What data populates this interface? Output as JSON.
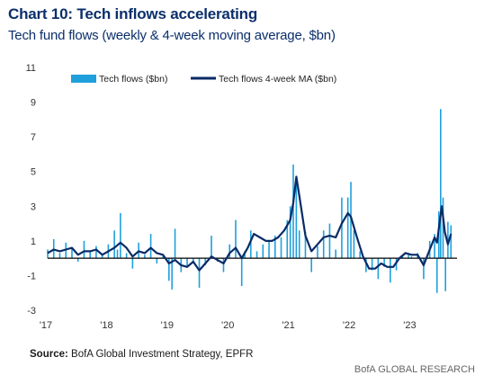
{
  "header": {
    "title": "Chart 10: Tech inflows accelerating",
    "subtitle": "Tech fund flows (weekly & 4-week moving average, $bn)"
  },
  "footer": {
    "source_label": "Source:",
    "source_text": "BofA Global Investment Strategy, EPFR",
    "brand": "BofA GLOBAL RESEARCH"
  },
  "colors": {
    "bars": "#1fa0dc",
    "line": "#0a2a66",
    "zero_line": "#000000"
  },
  "chart_data": {
    "type": "bar",
    "title": "Chart 10: Tech inflows accelerating",
    "subtitle": "Tech fund flows (weekly & 4-week moving average, $bn)",
    "ylim": [
      -3,
      11
    ],
    "y_ticks": [
      "11",
      "9",
      "7",
      "5",
      "3",
      "1",
      "-1",
      "-3"
    ],
    "x_ticks": [
      "'17",
      "'18",
      "'19",
      "'20",
      "'21",
      "'22",
      "'23"
    ],
    "xlim": [
      2017.0,
      2023.75
    ],
    "grid": false,
    "legend": {
      "placement": "top",
      "entries": [
        "Tech flows ($bn)",
        "Tech flows 4-week MA ($bn)"
      ]
    },
    "series": [
      {
        "name": "Tech flows ($bn)",
        "type": "bar",
        "x": [
          2017.0,
          2017.1,
          2017.2,
          2017.3,
          2017.4,
          2017.5,
          2017.6,
          2017.7,
          2017.8,
          2017.9,
          2018.0,
          2018.1,
          2018.15,
          2018.2,
          2018.3,
          2018.4,
          2018.5,
          2018.6,
          2018.7,
          2018.8,
          2018.9,
          2019.0,
          2019.05,
          2019.1,
          2019.2,
          2019.3,
          2019.4,
          2019.5,
          2019.6,
          2019.7,
          2019.8,
          2019.9,
          2020.0,
          2020.1,
          2020.2,
          2020.25,
          2020.35,
          2020.45,
          2020.55,
          2020.65,
          2020.75,
          2020.85,
          2020.95,
          2021.0,
          2021.05,
          2021.1,
          2021.15,
          2021.25,
          2021.35,
          2021.45,
          2021.55,
          2021.65,
          2021.75,
          2021.85,
          2021.95,
          2022.0,
          2022.05,
          2022.15,
          2022.25,
          2022.35,
          2022.45,
          2022.55,
          2022.65,
          2022.75,
          2022.85,
          2022.95,
          2023.0,
          2023.1,
          2023.2,
          2023.3,
          2023.38,
          2023.42,
          2023.45,
          2023.48,
          2023.52,
          2023.56,
          2023.6,
          2023.65
        ],
        "values": [
          0.5,
          1.1,
          0.3,
          0.9,
          0.6,
          -0.2,
          1.0,
          0.4,
          0.7,
          0.2,
          0.8,
          1.6,
          0.5,
          2.6,
          0.3,
          -0.6,
          0.9,
          0.2,
          1.4,
          -0.3,
          0.1,
          -1.3,
          -1.8,
          1.7,
          -0.8,
          -0.5,
          -0.2,
          -1.7,
          -0.4,
          1.3,
          -0.2,
          -0.8,
          0.8,
          2.2,
          -1.6,
          0.4,
          1.6,
          0.4,
          0.8,
          1.0,
          1.3,
          1.2,
          2.2,
          3.0,
          5.4,
          4.4,
          1.6,
          1.5,
          -0.8,
          0.7,
          1.6,
          2.0,
          0.5,
          3.5,
          3.5,
          4.4,
          1.6,
          0.4,
          -0.8,
          -0.7,
          -1.2,
          -0.5,
          -1.4,
          -0.7,
          0.1,
          0.3,
          0.1,
          0.3,
          -1.2,
          1.0,
          1.4,
          -2.0,
          2.7,
          8.6,
          3.5,
          -1.9,
          2.1,
          1.9
        ]
      },
      {
        "name": "Tech flows 4-week MA ($bn)",
        "type": "line",
        "x": [
          2017.0,
          2017.1,
          2017.2,
          2017.3,
          2017.4,
          2017.5,
          2017.6,
          2017.7,
          2017.8,
          2017.9,
          2018.0,
          2018.1,
          2018.2,
          2018.3,
          2018.4,
          2018.5,
          2018.6,
          2018.7,
          2018.8,
          2018.9,
          2019.0,
          2019.1,
          2019.2,
          2019.3,
          2019.4,
          2019.5,
          2019.6,
          2019.7,
          2019.8,
          2019.9,
          2020.0,
          2020.1,
          2020.2,
          2020.3,
          2020.4,
          2020.5,
          2020.6,
          2020.7,
          2020.8,
          2020.9,
          2021.0,
          2021.05,
          2021.1,
          2021.15,
          2021.25,
          2021.35,
          2021.45,
          2021.55,
          2021.65,
          2021.75,
          2021.85,
          2021.95,
          2022.0,
          2022.1,
          2022.2,
          2022.3,
          2022.4,
          2022.5,
          2022.6,
          2022.7,
          2022.8,
          2022.9,
          2023.0,
          2023.1,
          2023.2,
          2023.3,
          2023.38,
          2023.42,
          2023.46,
          2023.5,
          2023.55,
          2023.6,
          2023.65
        ],
        "values": [
          0.3,
          0.5,
          0.4,
          0.5,
          0.6,
          0.2,
          0.4,
          0.4,
          0.5,
          0.2,
          0.4,
          0.6,
          0.9,
          0.6,
          0.1,
          0.4,
          0.3,
          0.6,
          0.3,
          0.2,
          -0.3,
          -0.1,
          -0.4,
          -0.5,
          -0.2,
          -0.7,
          -0.3,
          0.1,
          -0.1,
          -0.3,
          0.3,
          0.6,
          0.0,
          0.6,
          1.4,
          1.2,
          1.0,
          1.0,
          1.2,
          1.6,
          2.2,
          3.2,
          4.7,
          3.6,
          1.3,
          0.4,
          0.8,
          1.2,
          1.3,
          1.2,
          2.0,
          2.6,
          2.4,
          1.2,
          0.1,
          -0.6,
          -0.6,
          -0.3,
          -0.5,
          -0.5,
          0.0,
          0.3,
          0.2,
          0.2,
          -0.4,
          0.5,
          1.2,
          0.9,
          2.0,
          3.0,
          1.5,
          0.8,
          1.4
        ]
      }
    ]
  }
}
